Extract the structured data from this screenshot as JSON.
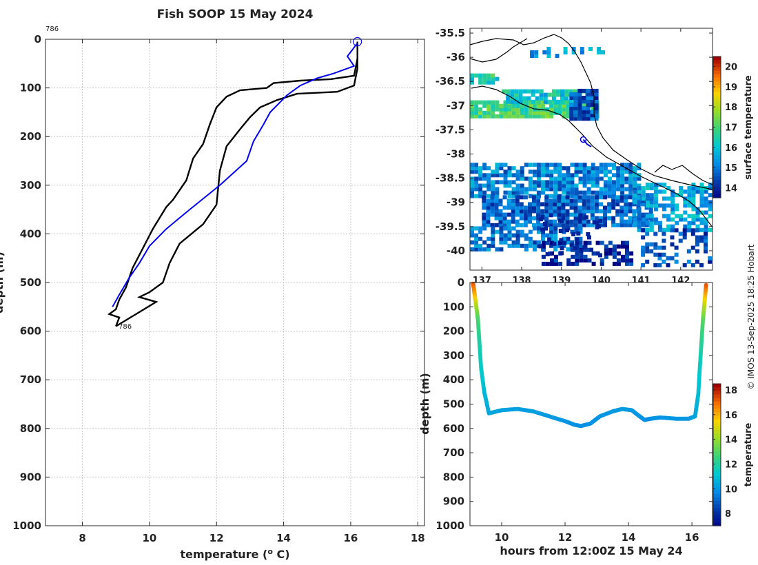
{
  "title": "Fish SOOP 15 May 2024",
  "credit": "© IMOS 13-Sep-2025 18:25 Hobart",
  "chart_data": [
    {
      "type": "line",
      "name": "temperature-profile",
      "xlabel": "temperature (° C)",
      "ylabel": "depth (m)",
      "xlim": [
        6.9,
        18.2
      ],
      "ylim": [
        0,
        1000
      ],
      "xticks": [
        "8",
        "10",
        "12",
        "14",
        "16",
        "18"
      ],
      "yticks": [
        "0",
        "100",
        "200",
        "300",
        "400",
        "500",
        "600",
        "700",
        "800",
        "900",
        "1000"
      ],
      "start_label": "786",
      "end_label": "786",
      "grid": true,
      "series": [
        {
          "name": "profile-down",
          "color": "#000000",
          "points": [
            [
              16.2,
              5
            ],
            [
              16.2,
              40
            ],
            [
              16.1,
              75
            ],
            [
              15.4,
              82
            ],
            [
              14.5,
              85
            ],
            [
              13.7,
              90
            ],
            [
              13.5,
              100
            ],
            [
              12.7,
              105
            ],
            [
              12.3,
              118
            ],
            [
              12.0,
              140
            ],
            [
              11.8,
              175
            ],
            [
              11.6,
              215
            ],
            [
              11.3,
              245
            ],
            [
              11.1,
              290
            ],
            [
              10.7,
              330
            ],
            [
              10.5,
              345
            ],
            [
              10.1,
              390
            ],
            [
              9.8,
              430
            ],
            [
              9.5,
              470
            ],
            [
              9.3,
              510
            ],
            [
              9.1,
              535
            ],
            [
              9.0,
              555
            ],
            [
              8.8,
              565
            ],
            [
              9.1,
              572
            ],
            [
              9.0,
              590
            ]
          ]
        },
        {
          "name": "profile-up",
          "color": "#000000",
          "points": [
            [
              9.0,
              590
            ],
            [
              9.6,
              565
            ],
            [
              10.2,
              540
            ],
            [
              9.7,
              530
            ],
            [
              10.0,
              520
            ],
            [
              10.4,
              500
            ],
            [
              10.6,
              460
            ],
            [
              10.9,
              420
            ],
            [
              11.6,
              380
            ],
            [
              12.0,
              340
            ],
            [
              12.1,
              270
            ],
            [
              12.3,
              220
            ],
            [
              12.7,
              185
            ],
            [
              13.0,
              160
            ],
            [
              13.3,
              140
            ],
            [
              13.8,
              125
            ],
            [
              14.4,
              112
            ],
            [
              15.6,
              108
            ],
            [
              16.1,
              95
            ],
            [
              16.2,
              60
            ],
            [
              16.2,
              5
            ]
          ]
        },
        {
          "name": "climatology",
          "color": "#0000ee",
          "points": [
            [
              16.2,
              8
            ],
            [
              15.9,
              35
            ],
            [
              16.1,
              55
            ],
            [
              15.5,
              70
            ],
            [
              15.0,
              80
            ],
            [
              14.5,
              95
            ],
            [
              14.1,
              115
            ],
            [
              13.6,
              150
            ],
            [
              13.4,
              175
            ],
            [
              13.1,
              210
            ],
            [
              12.9,
              250
            ],
            [
              12.1,
              300
            ],
            [
              11.2,
              350
            ],
            [
              10.5,
              390
            ],
            [
              10.0,
              425
            ],
            [
              9.7,
              460
            ],
            [
              9.4,
              490
            ],
            [
              9.1,
              525
            ],
            [
              8.9,
              550
            ]
          ]
        }
      ]
    },
    {
      "type": "heatmap",
      "name": "sst-map",
      "colorbar_label": "surface temperature",
      "clim": [
        13.5,
        20.5
      ],
      "colorbar_ticks": [
        "14",
        "15",
        "16",
        "17",
        "18",
        "19",
        "20"
      ],
      "xlim": [
        136.7,
        142.8
      ],
      "ylim": [
        -40.4,
        -35.4
      ],
      "xticks": [
        "137",
        "138",
        "139",
        "140",
        "141",
        "142"
      ],
      "yticks": [
        "-35.5",
        "-36",
        "-36.5",
        "-37",
        "-37.5",
        "-38",
        "-38.5",
        "-39",
        "-39.5",
        "-40"
      ],
      "track_points": [
        [
          139.55,
          -37.7
        ],
        [
          139.65,
          -37.8
        ],
        [
          139.75,
          -37.85
        ]
      ],
      "marker": [
        139.55,
        -37.7
      ]
    },
    {
      "type": "scatter",
      "name": "depth-time",
      "xlabel": "hours from 12:00Z 15 May 24",
      "ylabel": "depth (m)",
      "colorbar_label": "temperature",
      "clim": [
        7,
        18.5
      ],
      "colorbar_ticks": [
        "8",
        "10",
        "12",
        "14",
        "16",
        "18"
      ],
      "xlim": [
        9,
        16.65
      ],
      "ylim": [
        0,
        1000
      ],
      "xticks": [
        "10",
        "12",
        "14",
        "16"
      ],
      "yticks": [
        "0",
        "100",
        "200",
        "300",
        "400",
        "500",
        "600",
        "700",
        "800",
        "900",
        "1000"
      ],
      "track": [
        [
          9.1,
          5,
          17.5
        ],
        [
          9.15,
          50,
          16.2
        ],
        [
          9.2,
          100,
          14.5
        ],
        [
          9.25,
          150,
          13.0
        ],
        [
          9.3,
          250,
          12.0
        ],
        [
          9.35,
          350,
          11.5
        ],
        [
          9.45,
          450,
          11.0
        ],
        [
          9.6,
          538,
          10.5
        ],
        [
          10.0,
          525,
          10.4
        ],
        [
          10.5,
          520,
          10.3
        ],
        [
          11.0,
          530,
          10.3
        ],
        [
          11.5,
          550,
          10.2
        ],
        [
          12.0,
          570,
          10.1
        ],
        [
          12.3,
          585,
          10.0
        ],
        [
          12.5,
          590,
          10.0
        ],
        [
          12.8,
          580,
          10.0
        ],
        [
          13.1,
          550,
          10.1
        ],
        [
          13.5,
          530,
          10.2
        ],
        [
          13.8,
          520,
          10.2
        ],
        [
          14.1,
          525,
          10.2
        ],
        [
          14.3,
          545,
          10.1
        ],
        [
          14.5,
          565,
          10.0
        ],
        [
          14.7,
          560,
          10.0
        ],
        [
          15.0,
          555,
          10.1
        ],
        [
          15.5,
          560,
          10.1
        ],
        [
          15.9,
          560,
          10.2
        ],
        [
          16.1,
          550,
          10.4
        ],
        [
          16.2,
          460,
          11.0
        ],
        [
          16.25,
          350,
          11.5
        ],
        [
          16.3,
          250,
          12.2
        ],
        [
          16.35,
          150,
          13.2
        ],
        [
          16.4,
          80,
          15.0
        ],
        [
          16.45,
          5,
          17.5
        ]
      ]
    }
  ]
}
